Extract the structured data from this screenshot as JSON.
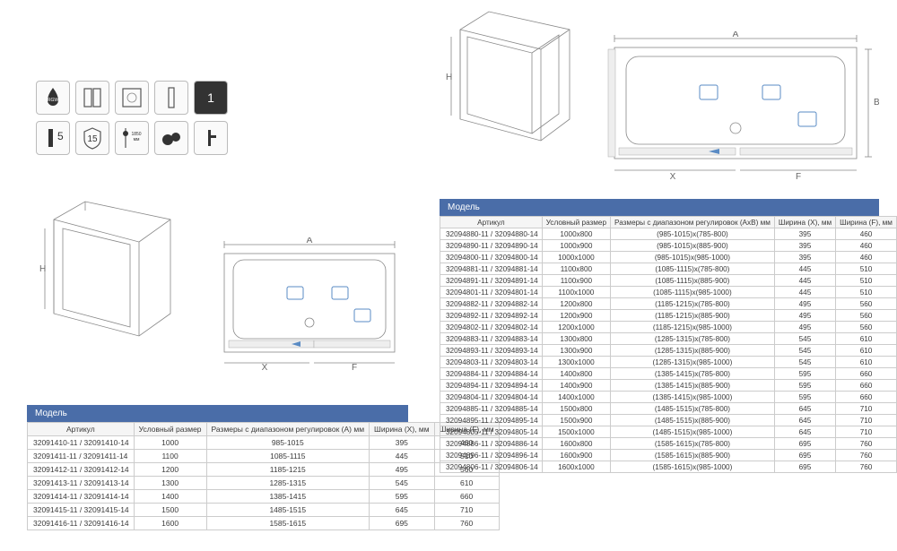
{
  "icons": [
    "RGW",
    "door",
    "glass",
    "profile",
    "1"
  ],
  "icons2": [
    "5",
    "15",
    "1850 мм",
    "wheels",
    "handle"
  ],
  "dims": {
    "A": "A",
    "B": "B",
    "H": "H",
    "X": "X",
    "F": "F"
  },
  "leftTable": {
    "header": "Модель",
    "columns": [
      "Артикул",
      "Условный размер",
      "Размеры с диапазоном регулировок (А) мм",
      "Ширина (X), мм",
      "Ширина (F), мм"
    ],
    "rows": [
      [
        "32091410-11 / 32091410-14",
        "1000",
        "985-1015",
        "395",
        "460"
      ],
      [
        "32091411-11 / 32091411-14",
        "1100",
        "1085-1115",
        "445",
        "510"
      ],
      [
        "32091412-11 / 32091412-14",
        "1200",
        "1185-1215",
        "495",
        "560"
      ],
      [
        "32091413-11 / 32091413-14",
        "1300",
        "1285-1315",
        "545",
        "610"
      ],
      [
        "32091414-11 / 32091414-14",
        "1400",
        "1385-1415",
        "595",
        "660"
      ],
      [
        "32091415-11 / 32091415-14",
        "1500",
        "1485-1515",
        "645",
        "710"
      ],
      [
        "32091416-11 / 32091416-14",
        "1600",
        "1585-1615",
        "695",
        "760"
      ]
    ]
  },
  "rightTable": {
    "header": "Модель",
    "columns": [
      "Артикул",
      "Условный размер",
      "Размеры с диапазоном регулировок (АхB) мм",
      "Ширина (X), мм",
      "Ширина (F), мм"
    ],
    "rows": [
      [
        "32094880-11 / 32094880-14",
        "1000x800",
        "(985-1015)x(785-800)",
        "395",
        "460"
      ],
      [
        "32094890-11 / 32094890-14",
        "1000x900",
        "(985-1015)x(885-900)",
        "395",
        "460"
      ],
      [
        "32094800-11 / 32094800-14",
        "1000x1000",
        "(985-1015)x(985-1000)",
        "395",
        "460"
      ],
      [
        "32094881-11 / 32094881-14",
        "1100x800",
        "(1085-1115)x(785-800)",
        "445",
        "510"
      ],
      [
        "32094891-11 / 32094891-14",
        "1100x900",
        "(1085-1115)x(885-900)",
        "445",
        "510"
      ],
      [
        "32094801-11 / 32094801-14",
        "1100x1000",
        "(1085-1115)x(985-1000)",
        "445",
        "510"
      ],
      [
        "32094882-11 / 32094882-14",
        "1200x800",
        "(1185-1215)x(785-800)",
        "495",
        "560"
      ],
      [
        "32094892-11 / 32094892-14",
        "1200x900",
        "(1185-1215)x(885-900)",
        "495",
        "560"
      ],
      [
        "32094802-11 / 32094802-14",
        "1200x1000",
        "(1185-1215)x(985-1000)",
        "495",
        "560"
      ],
      [
        "32094883-11 / 32094883-14",
        "1300x800",
        "(1285-1315)x(785-800)",
        "545",
        "610"
      ],
      [
        "32094893-11 / 32094893-14",
        "1300x900",
        "(1285-1315)x(885-900)",
        "545",
        "610"
      ],
      [
        "32094803-11 / 32094803-14",
        "1300x1000",
        "(1285-1315)x(985-1000)",
        "545",
        "610"
      ],
      [
        "32094884-11 / 32094884-14",
        "1400x800",
        "(1385-1415)x(785-800)",
        "595",
        "660"
      ],
      [
        "32094894-11 / 32094894-14",
        "1400x900",
        "(1385-1415)x(885-900)",
        "595",
        "660"
      ],
      [
        "32094804-11 / 32094804-14",
        "1400x1000",
        "(1385-1415)x(985-1000)",
        "595",
        "660"
      ],
      [
        "32094885-11 / 32094885-14",
        "1500x800",
        "(1485-1515)x(785-800)",
        "645",
        "710"
      ],
      [
        "32094895-11 / 32094895-14",
        "1500x900",
        "(1485-1515)x(885-900)",
        "645",
        "710"
      ],
      [
        "32094805-11 / 32094805-14",
        "1500x1000",
        "(1485-1515)x(985-1000)",
        "645",
        "710"
      ],
      [
        "32094886-11 / 32094886-14",
        "1600x800",
        "(1585-1615)x(785-800)",
        "695",
        "760"
      ],
      [
        "32094896-11 / 32094896-14",
        "1600x900",
        "(1585-1615)x(885-900)",
        "695",
        "760"
      ],
      [
        "32094806-11 / 32094806-14",
        "1600x1000",
        "(1585-1615)x(985-1000)",
        "695",
        "760"
      ]
    ]
  }
}
